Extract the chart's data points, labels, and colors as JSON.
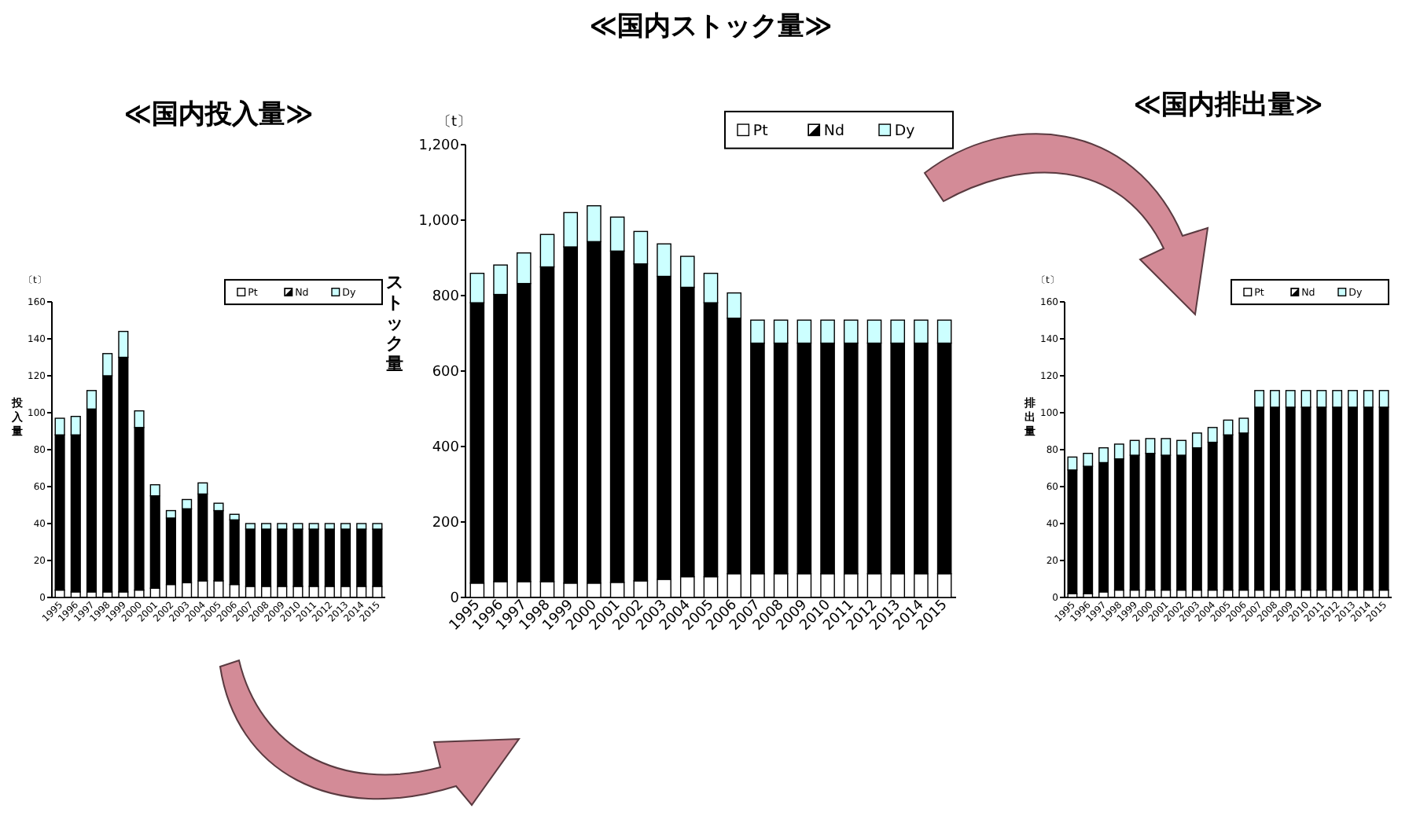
{
  "chart_data": [
    {
      "type": "bar",
      "stacked": true,
      "title": "≪国内投入量≫",
      "ylabel": "投入量",
      "annotations": [
        "〔t〕"
      ],
      "legend": "top right",
      "categories": [
        "1995",
        "1996",
        "1997",
        "1998",
        "1999",
        "2000",
        "2001",
        "2002",
        "2003",
        "2004",
        "2005",
        "2006",
        "2007",
        "2008",
        "2009",
        "2010",
        "2011",
        "2012",
        "2013",
        "2014",
        "2015"
      ],
      "series": [
        {
          "name": "Pt",
          "color": "#ffffff",
          "values": [
            4,
            3,
            3,
            3,
            3,
            4,
            5,
            7,
            8,
            9,
            9,
            7,
            6,
            6,
            6,
            6,
            6,
            6,
            6,
            6,
            6
          ]
        },
        {
          "name": "Nd",
          "color": "#000000",
          "values": [
            84,
            85,
            99,
            117,
            127,
            88,
            50,
            36,
            40,
            47,
            38,
            35,
            31,
            31,
            31,
            31,
            31,
            31,
            31,
            31,
            31
          ]
        },
        {
          "name": "Dy",
          "color": "#ccffff",
          "values": [
            9,
            10,
            10,
            12,
            14,
            9,
            6,
            4,
            5,
            6,
            4,
            3,
            3,
            3,
            3,
            3,
            3,
            3,
            3,
            3,
            3
          ]
        }
      ],
      "ylim": [
        0,
        160
      ],
      "yticks": [
        0,
        20,
        40,
        60,
        80,
        100,
        120,
        140,
        160
      ]
    },
    {
      "type": "bar",
      "stacked": true,
      "title": "≪国内ストック量≫",
      "ylabel": "ストック量",
      "annotations": [
        "〔t〕"
      ],
      "legend": "top right",
      "categories": [
        "1995",
        "1996",
        "1997",
        "1998",
        "1999",
        "2000",
        "2001",
        "2002",
        "2003",
        "2004",
        "2005",
        "2006",
        "2007",
        "2008",
        "2009",
        "2010",
        "2011",
        "2012",
        "2013",
        "2014",
        "2015"
      ],
      "series": [
        {
          "name": "Pt",
          "color": "#ffffff",
          "values": [
            38,
            42,
            42,
            42,
            38,
            38,
            40,
            44,
            48,
            55,
            55,
            63,
            63,
            63,
            63,
            63,
            63,
            63,
            63,
            63,
            63
          ]
        },
        {
          "name": "Nd",
          "color": "#000000",
          "values": [
            743,
            761,
            790,
            834,
            891,
            905,
            878,
            840,
            803,
            767,
            726,
            677,
            611,
            611,
            611,
            611,
            611,
            611,
            611,
            611,
            611
          ]
        },
        {
          "name": "Dy",
          "color": "#ccffff",
          "values": [
            78,
            78,
            81,
            86,
            91,
            95,
            90,
            86,
            86,
            82,
            78,
            67,
            61,
            61,
            61,
            61,
            61,
            61,
            61,
            61,
            61
          ]
        }
      ],
      "ylim": [
        0,
        1200
      ],
      "yticks": [
        0,
        200,
        400,
        600,
        800,
        {
          "value": 1000,
          "label": "1,000"
        },
        {
          "value": 1200,
          "label": "1,200"
        }
      ]
    },
    {
      "type": "bar",
      "stacked": true,
      "title": "≪国内排出量≫",
      "ylabel": "排出量",
      "annotations": [
        "〔t〕"
      ],
      "legend": "top right",
      "categories": [
        "1995",
        "1996",
        "1997",
        "1998",
        "1999",
        "2000",
        "2001",
        "2002",
        "2003",
        "2004",
        "2005",
        "2006",
        "2007",
        "2008",
        "2009",
        "2010",
        "2011",
        "2012",
        "2013",
        "2014",
        "2015"
      ],
      "series": [
        {
          "name": "Pt",
          "color": "#ffffff",
          "values": [
            2,
            2,
            3,
            4,
            4,
            4,
            4,
            4,
            4,
            4,
            4,
            4,
            4,
            4,
            4,
            4,
            4,
            4,
            4,
            4,
            4
          ]
        },
        {
          "name": "Nd",
          "color": "#000000",
          "values": [
            67,
            69,
            70,
            71,
            73,
            74,
            73,
            73,
            77,
            80,
            84,
            85,
            99,
            99,
            99,
            99,
            99,
            99,
            99,
            99,
            99
          ]
        },
        {
          "name": "Dy",
          "color": "#ccffff",
          "values": [
            7,
            7,
            8,
            8,
            8,
            8,
            9,
            8,
            8,
            8,
            8,
            8,
            9,
            9,
            9,
            9,
            9,
            9,
            9,
            9,
            9
          ]
        }
      ],
      "ylim": [
        0,
        160
      ],
      "yticks": [
        0,
        20,
        40,
        60,
        80,
        100,
        120,
        140,
        160
      ]
    }
  ]
}
